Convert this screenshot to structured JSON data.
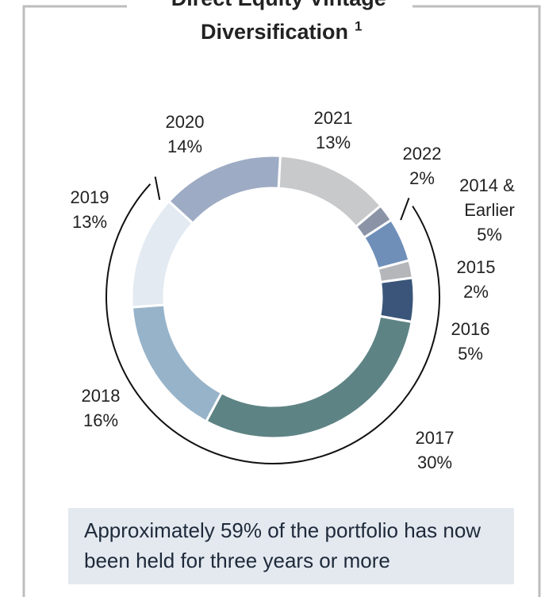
{
  "chart_data": {
    "type": "pie",
    "title": "Direct Equity Vintage Diversification",
    "title_footnote": "1",
    "categories": [
      "2021",
      "2022",
      "2014 & Earlier",
      "2015",
      "2016",
      "2017",
      "2018",
      "2019",
      "2020"
    ],
    "values": [
      13,
      2,
      5,
      2,
      5,
      30,
      16,
      13,
      14
    ],
    "value_labels": [
      "13%",
      "2%",
      "5%",
      "2%",
      "5%",
      "30%",
      "16%",
      "13%",
      "14%"
    ],
    "colors": [
      "#c8c9cb",
      "#8b94a6",
      "#6f8fb9",
      "#b4b6ba",
      "#3a5579",
      "#5e8385",
      "#97b3c9",
      "#e3eaf1",
      "#9eabc4"
    ],
    "annotation": "Approximately 59% of the portfolio has now been held for three years or more"
  }
}
